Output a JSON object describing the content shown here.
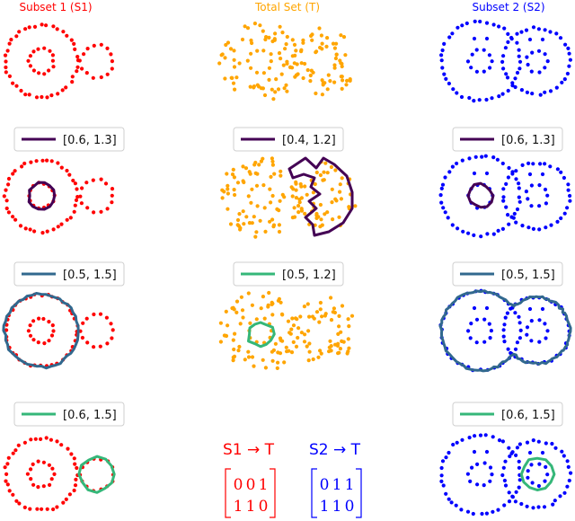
{
  "colors": {
    "s1": "#ff0000",
    "total": "#ffa500",
    "s2": "#0000ff",
    "loop_purple": "#440154",
    "loop_blue": "#31688e",
    "loop_green": "#35b779",
    "legend_border": "#cfcfcf"
  },
  "titles": {
    "s1": "Subset 1 (S1)",
    "total": "Total Set (T)",
    "s2": "Subset 2 (S2)"
  },
  "legends": {
    "r1c1": "[0.6, 1.3]",
    "r1c2": "[0.4, 1.2]",
    "r1c3": "[0.6, 1.3]",
    "r2c1": "[0.5, 1.5]",
    "r2c2": "[0.5, 1.2]",
    "r2c3": "[0.5, 1.5]",
    "r3c1": "[0.6, 1.5]",
    "r3c3": "[0.6, 1.5]"
  },
  "matrices": {
    "s1_to_t": {
      "label": "S1 → T",
      "rows": [
        [
          "0",
          "0",
          "1"
        ],
        [
          "1",
          "1",
          "0"
        ]
      ]
    },
    "s2_to_t": {
      "label": "S2 → T",
      "rows": [
        [
          "0",
          "1",
          "1"
        ],
        [
          "1",
          "1",
          "0"
        ]
      ]
    }
  }
}
